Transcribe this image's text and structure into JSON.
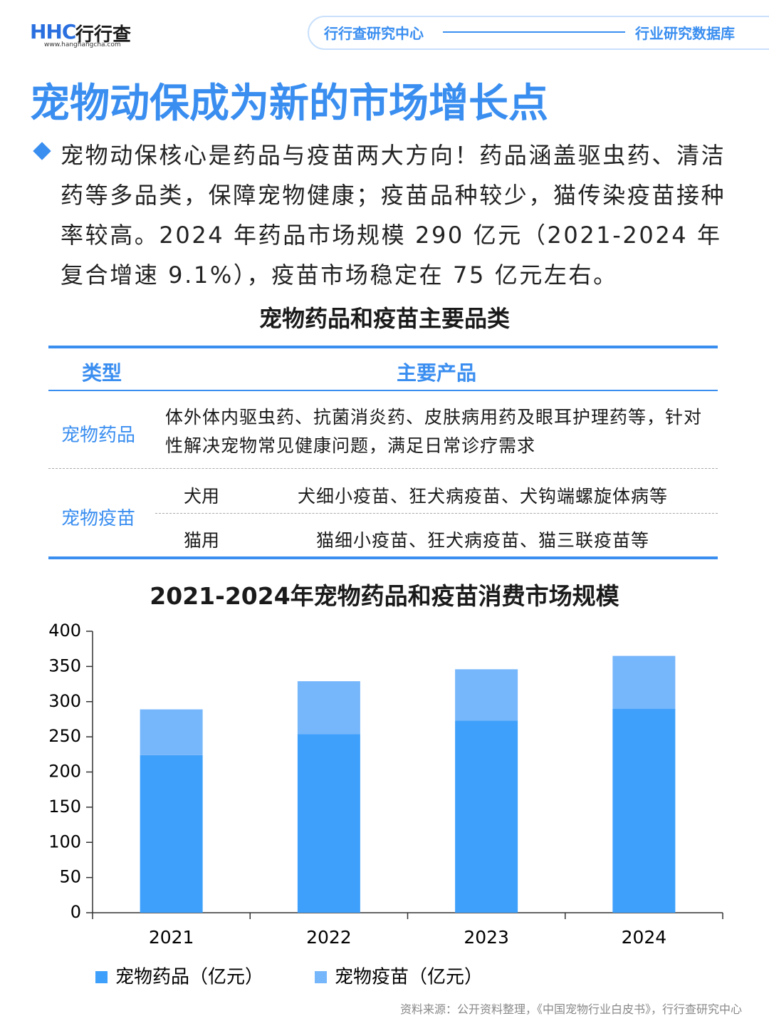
{
  "header": {
    "logo": "HHC",
    "logo_cn": "行行查",
    "url": "www.hanghangcha.com",
    "center": "行行查研究中心",
    "database": "行业研究数据库"
  },
  "title": "宠物动保成为新的市场增长点",
  "paragraph": "宠物动保核心是药品与疫苗两大方向！药品涵盖驱虫药、清洁药等多品类，保障宠物健康；疫苗品种较少，猫传染疫苗接种率较高。2024 年药品市场规模 290 亿元（2021-2024 年复合增速 9.1%），疫苗市场稳定在 75 亿元左右。",
  "table": {
    "title": "宠物药品和疫苗主要品类",
    "header": [
      "类型",
      "主要产品"
    ],
    "rows": [
      {
        "type": "宠物药品",
        "products": "体外体内驱虫药、抗菌消炎药、皮肤病用药及眼耳护理药等，针对性解决宠物常见健康问题，满足日常诊疗需求"
      },
      {
        "type": "宠物疫苗",
        "subrows": [
          {
            "use": "犬用",
            "products": "犬细小疫苗、狂犬病疫苗、犬钩端螺旋体病等"
          },
          {
            "use": "猫用",
            "products": "猫细小疫苗、狂犬病疫苗、猫三联疫苗等"
          }
        ]
      }
    ]
  },
  "chart_data": {
    "type": "stacked_bar",
    "title": "2021-2024年宠物药品和疫苗消费市场规模",
    "categories": [
      "2021",
      "2022",
      "2023",
      "2024"
    ],
    "series": [
      {
        "name": "宠物药品（亿元）",
        "color": "#3fa0fb",
        "values": [
          224,
          254,
          273,
          290
        ]
      },
      {
        "name": "宠物疫苗（亿元）",
        "color": "#76b6fb",
        "values": [
          65,
          75,
          73,
          75
        ]
      }
    ],
    "ylim": [
      0,
      400
    ],
    "yticks": [
      0,
      50,
      100,
      150,
      200,
      250,
      300,
      350,
      400
    ],
    "grid": false,
    "legend": "bottom"
  },
  "source": "资料来源：公开资料整理，《中国宠物行业白皮书》，行行查研究中心"
}
